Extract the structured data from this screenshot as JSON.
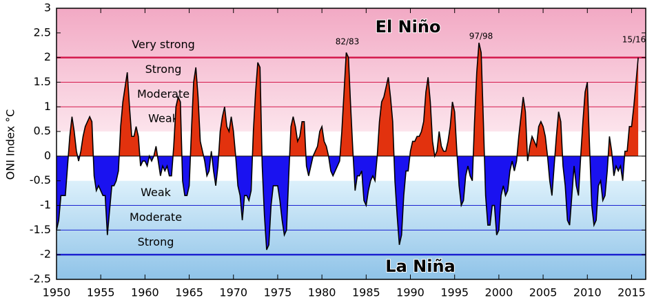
{
  "chart_data": {
    "type": "area",
    "y_label": "ONI Index °C",
    "el_nino_label": "El Niño",
    "la_nina_label": "La Niña",
    "event_labels": [
      "82/83",
      "97/98",
      "15/16"
    ],
    "el_nino_levels": [
      {
        "label": "Weak",
        "from": 0.5
      },
      {
        "label": "Moderate",
        "from": 1
      },
      {
        "label": "Strong",
        "from": 1.5
      },
      {
        "label": "Very strong",
        "from": 2
      }
    ],
    "la_nina_levels": [
      {
        "label": "Weak",
        "from": -0.5
      },
      {
        "label": "Moderate",
        "from": -1
      },
      {
        "label": "Strong",
        "from": -1.5
      }
    ],
    "very_strong_lines": [
      2,
      -2
    ],
    "positive_color": "#e2320e",
    "negative_color": "#1a12f0",
    "el_nino_color": "#d4174b",
    "la_nina_color": "#1a20d0",
    "xlim": [
      1950,
      2016.6
    ],
    "ylim": [
      -2.5,
      3
    ],
    "xticks": [
      1950,
      1955,
      1960,
      1965,
      1970,
      1975,
      1980,
      1985,
      1990,
      1995,
      2000,
      2005,
      2010,
      2015
    ],
    "yticks": [
      3,
      2.5,
      2,
      1.5,
      1,
      0.5,
      0,
      -0.5,
      -1,
      -1.5,
      -2,
      -2.5
    ],
    "x": [
      1950,
      1950.25,
      1950.5,
      1950.75,
      1951,
      1951.25,
      1951.5,
      1951.75,
      1952,
      1952.25,
      1952.5,
      1952.75,
      1953,
      1953.25,
      1953.5,
      1953.75,
      1954,
      1954.25,
      1954.5,
      1954.75,
      1955,
      1955.25,
      1955.5,
      1955.75,
      1956,
      1956.25,
      1956.5,
      1956.75,
      1957,
      1957.25,
      1957.5,
      1957.75,
      1958,
      1958.25,
      1958.5,
      1958.75,
      1959,
      1959.25,
      1959.5,
      1959.75,
      1960,
      1960.25,
      1960.5,
      1960.75,
      1961,
      1961.25,
      1961.5,
      1961.75,
      1962,
      1962.25,
      1962.5,
      1962.75,
      1963,
      1963.25,
      1963.5,
      1963.75,
      1964,
      1964.25,
      1964.5,
      1964.75,
      1965,
      1965.25,
      1965.5,
      1965.75,
      1966,
      1966.25,
      1966.5,
      1966.75,
      1967,
      1967.25,
      1967.5,
      1967.75,
      1968,
      1968.25,
      1968.5,
      1968.75,
      1969,
      1969.25,
      1969.5,
      1969.75,
      1970,
      1970.25,
      1970.5,
      1970.75,
      1971,
      1971.25,
      1971.5,
      1971.75,
      1972,
      1972.25,
      1972.5,
      1972.75,
      1973,
      1973.25,
      1973.5,
      1973.75,
      1974,
      1974.25,
      1974.5,
      1974.75,
      1975,
      1975.25,
      1975.5,
      1975.75,
      1976,
      1976.25,
      1976.5,
      1976.75,
      1977,
      1977.25,
      1977.5,
      1977.75,
      1978,
      1978.25,
      1978.5,
      1978.75,
      1979,
      1979.25,
      1979.5,
      1979.75,
      1980,
      1980.25,
      1980.5,
      1980.75,
      1981,
      1981.25,
      1981.5,
      1981.75,
      1982,
      1982.25,
      1982.5,
      1982.75,
      1983,
      1983.25,
      1983.5,
      1983.75,
      1984,
      1984.25,
      1984.5,
      1984.75,
      1985,
      1985.25,
      1985.5,
      1985.75,
      1986,
      1986.25,
      1986.5,
      1986.75,
      1987,
      1987.25,
      1987.5,
      1987.75,
      1988,
      1988.25,
      1988.5,
      1988.75,
      1989,
      1989.25,
      1989.5,
      1989.75,
      1990,
      1990.25,
      1990.5,
      1990.75,
      1991,
      1991.25,
      1991.5,
      1991.75,
      1992,
      1992.25,
      1992.5,
      1992.75,
      1993,
      1993.25,
      1993.5,
      1993.75,
      1994,
      1994.25,
      1994.5,
      1994.75,
      1995,
      1995.25,
      1995.5,
      1995.75,
      1996,
      1996.25,
      1996.5,
      1996.75,
      1997,
      1997.25,
      1997.5,
      1997.75,
      1998,
      1998.25,
      1998.5,
      1998.75,
      1999,
      1999.25,
      1999.5,
      1999.75,
      2000,
      2000.25,
      2000.5,
      2000.75,
      2001,
      2001.25,
      2001.5,
      2001.75,
      2002,
      2002.25,
      2002.5,
      2002.75,
      2003,
      2003.25,
      2003.5,
      2003.75,
      2004,
      2004.25,
      2004.5,
      2004.75,
      2005,
      2005.25,
      2005.5,
      2005.75,
      2006,
      2006.25,
      2006.5,
      2006.75,
      2007,
      2007.25,
      2007.5,
      2007.75,
      2008,
      2008.25,
      2008.5,
      2008.75,
      2009,
      2009.25,
      2009.5,
      2009.75,
      2010,
      2010.25,
      2010.5,
      2010.75,
      2011,
      2011.25,
      2011.5,
      2011.75,
      2012,
      2012.25,
      2012.5,
      2012.75,
      2013,
      2013.25,
      2013.5,
      2013.75,
      2014,
      2014.25,
      2014.5,
      2014.75,
      2015,
      2015.25,
      2015.5,
      2015.75
    ],
    "values": [
      -1.5,
      -1.3,
      -0.8,
      -0.8,
      -0.8,
      -0.2,
      0.4,
      0.8,
      0.5,
      0.1,
      -0.1,
      0.1,
      0.4,
      0.6,
      0.7,
      0.8,
      0.7,
      -0.4,
      -0.7,
      -0.6,
      -0.7,
      -0.8,
      -0.8,
      -1.6,
      -1.1,
      -0.6,
      -0.6,
      -0.5,
      -0.3,
      0.6,
      1.1,
      1.4,
      1.7,
      1.0,
      0.4,
      0.4,
      0.6,
      0.4,
      -0.2,
      -0.1,
      -0.1,
      -0.2,
      0.0,
      -0.1,
      0.0,
      0.2,
      -0.1,
      -0.4,
      -0.2,
      -0.3,
      -0.2,
      -0.4,
      -0.4,
      0.2,
      1.0,
      1.2,
      1.1,
      -0.5,
      -0.8,
      -0.8,
      -0.6,
      0.5,
      1.5,
      1.8,
      1.2,
      0.3,
      0.1,
      -0.1,
      -0.4,
      -0.3,
      0.1,
      -0.3,
      -0.6,
      -0.2,
      0.5,
      0.8,
      1.0,
      0.6,
      0.5,
      0.8,
      0.5,
      0.0,
      -0.6,
      -0.8,
      -1.3,
      -0.8,
      -0.8,
      -0.9,
      -0.7,
      0.5,
      1.3,
      1.9,
      1.8,
      -0.2,
      -1.2,
      -1.9,
      -1.8,
      -1.0,
      -0.6,
      -0.6,
      -0.6,
      -0.9,
      -1.3,
      -1.6,
      -1.5,
      -0.4,
      0.6,
      0.8,
      0.6,
      0.3,
      0.4,
      0.7,
      0.7,
      -0.2,
      -0.4,
      -0.2,
      0.0,
      0.1,
      0.2,
      0.5,
      0.6,
      0.3,
      0.2,
      0.0,
      -0.3,
      -0.4,
      -0.3,
      -0.2,
      -0.1,
      0.5,
      1.3,
      2.1,
      2.0,
      1.0,
      0.1,
      -0.7,
      -0.4,
      -0.4,
      -0.3,
      -0.9,
      -1.0,
      -0.7,
      -0.5,
      -0.4,
      -0.5,
      0.0,
      0.7,
      1.1,
      1.2,
      1.4,
      1.6,
      1.2,
      0.7,
      -0.5,
      -1.2,
      -1.8,
      -1.6,
      -0.8,
      -0.3,
      -0.3,
      0.1,
      0.3,
      0.3,
      0.4,
      0.4,
      0.5,
      0.7,
      1.3,
      1.6,
      1.1,
      0.3,
      0.0,
      0.1,
      0.5,
      0.2,
      0.1,
      0.1,
      0.3,
      0.6,
      1.1,
      0.9,
      0.1,
      -0.6,
      -1.0,
      -0.9,
      -0.4,
      -0.2,
      -0.4,
      -0.5,
      0.7,
      1.7,
      2.3,
      2.1,
      0.7,
      -0.8,
      -1.4,
      -1.4,
      -1.0,
      -1.0,
      -1.6,
      -1.5,
      -0.8,
      -0.6,
      -0.8,
      -0.7,
      -0.3,
      -0.1,
      -0.3,
      -0.1,
      0.4,
      0.8,
      1.2,
      0.9,
      -0.1,
      0.2,
      0.4,
      0.3,
      0.2,
      0.6,
      0.7,
      0.6,
      0.4,
      0.0,
      -0.5,
      -0.8,
      -0.2,
      0.4,
      0.9,
      0.7,
      -0.2,
      -0.6,
      -1.3,
      -1.4,
      -0.8,
      -0.2,
      -0.6,
      -0.8,
      0.0,
      0.7,
      1.3,
      1.5,
      0.2,
      -1.0,
      -1.4,
      -1.3,
      -0.6,
      -0.5,
      -0.9,
      -0.8,
      -0.3,
      0.4,
      0.1,
      -0.4,
      -0.2,
      -0.3,
      -0.2,
      -0.5,
      0.1,
      0.1,
      0.6,
      0.6,
      1.0,
      1.5,
      2.0
    ]
  }
}
